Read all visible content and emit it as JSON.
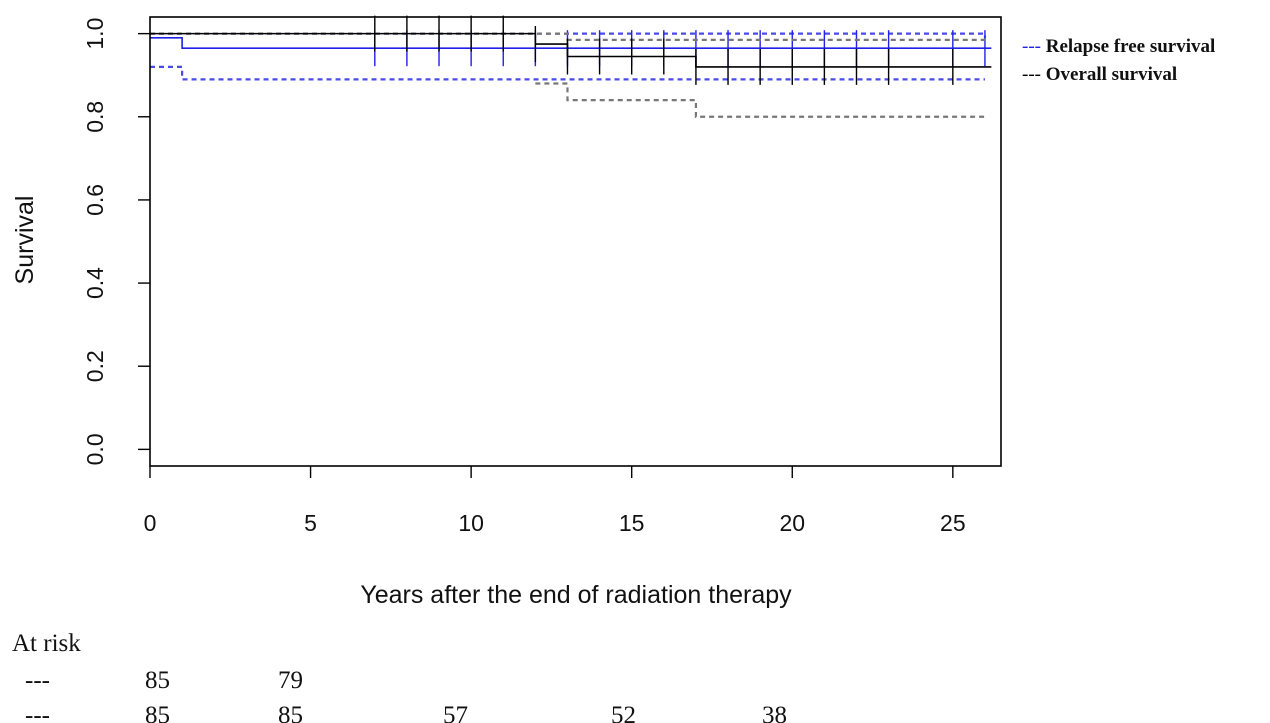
{
  "chart_data": {
    "type": "line",
    "title": "",
    "xlabel": "Years after the end of radiation therapy",
    "ylabel": "Survival",
    "xlim": [
      0,
      26.5
    ],
    "ylim": [
      -0.04,
      1.04
    ],
    "x_ticks": [
      0,
      5,
      10,
      15,
      20,
      25
    ],
    "y_ticks": [
      "0.0",
      "0.2",
      "0.4",
      "0.6",
      "0.8",
      "1.0"
    ],
    "grid": false,
    "legend_position": "top-right outside plot",
    "series": [
      {
        "name": "Relapse free survival",
        "prefix": "---",
        "color": "#2020e8",
        "steps": [
          [
            0,
            0.99
          ],
          [
            1,
            0.965
          ],
          [
            26.2,
            0.965
          ]
        ],
        "ci_upper": [
          [
            0,
            1.0
          ],
          [
            26,
            0.99
          ]
        ],
        "ci_lower": [
          [
            0,
            0.92
          ],
          [
            1,
            0.89
          ],
          [
            26,
            0.89
          ]
        ],
        "censor_times": [
          7,
          8,
          9,
          10,
          11,
          12,
          13,
          14,
          15,
          16,
          17,
          18,
          19,
          20,
          21,
          22,
          23,
          25,
          26
        ]
      },
      {
        "name": "Overall survival",
        "prefix": "---",
        "color": "#000000",
        "steps": [
          [
            0,
            1.0
          ],
          [
            12,
            0.975
          ],
          [
            13,
            0.945
          ],
          [
            17,
            0.92
          ],
          [
            26.2,
            0.92
          ]
        ],
        "ci_upper": [
          [
            0,
            1.0
          ],
          [
            12,
            1.0
          ],
          [
            13,
            0.985
          ],
          [
            26,
            0.985
          ]
        ],
        "ci_lower": [
          [
            12,
            0.88
          ],
          [
            13,
            0.84
          ],
          [
            17,
            0.8
          ],
          [
            26,
            0.8
          ]
        ],
        "censor_times": [
          7,
          8,
          9,
          10,
          11,
          12,
          13,
          14,
          15,
          16,
          17,
          18,
          19,
          20,
          21,
          22,
          23,
          25
        ]
      }
    ],
    "at_risk": {
      "label": "At risk",
      "rows": [
        {
          "marker": "---",
          "color": "#2e75d6",
          "values": [
            "85",
            "79"
          ]
        },
        {
          "marker": "---",
          "color": "#111111",
          "values": [
            "85",
            "85",
            "57",
            "52",
            "38"
          ]
        }
      ]
    }
  }
}
